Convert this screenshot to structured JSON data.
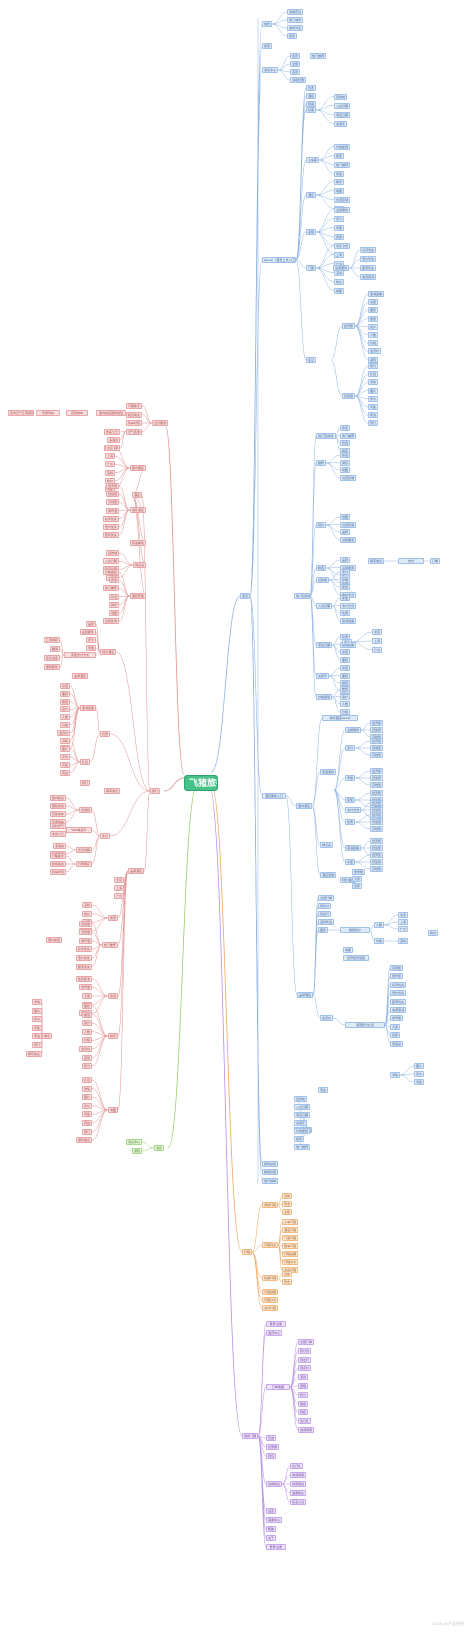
{
  "root": {
    "label": "飞猪旅行"
  },
  "colors": {
    "blue": "#8fb4e3",
    "red": "#e38f8f",
    "green": "#93cf6c",
    "orange": "#f0a75a",
    "purple": "#b690e6"
  },
  "watermark": "CSDN @产品经理",
  "branches": {
    "home": {
      "label": "首页"
    },
    "trip": {
      "label": "行程"
    },
    "msg": {
      "label": "消息"
    },
    "mine": {
      "label": "我的飞猪"
    },
    "travel": {
      "label": "旅行"
    }
  },
  "home": {
    "top_items": [
      "城市",
      "搜索",
      "消息中心",
      "banner（首页上方入口区）"
    ],
    "city_children": [
      "当前定位",
      "热门城市",
      "城市列表",
      "搜索"
    ],
    "msg_children": [
      "会员",
      "全部",
      "签到",
      "领取优惠"
    ],
    "banner_children": [
      "机票",
      "火车票",
      "酒店",
      "度假",
      "门票",
      "签证",
      "用车",
      "美食"
    ],
    "hot_items": [
      "热门目的地",
      "推荐",
      "特价",
      "精选"
    ],
    "bottom_items": [
      "猜你喜欢",
      "精选优惠",
      "旅行榜单"
    ]
  },
  "main": {
    "label": "酒店",
    "level2": [
      "国内酒店",
      "海外酒店",
      "民宿客栈",
      "钟点房",
      "酒店套餐",
      "特价酒店",
      "品牌酒店"
    ],
    "level3": [
      "目的地",
      "入住日期",
      "离店日期",
      "关键字",
      "价格星级",
      "搜索",
      "热门推荐",
      "筛选",
      "排序",
      "地图",
      "位置区域",
      "品牌",
      "设施服务",
      "评分",
      "早餐",
      "床型",
      "支付方式",
      "优惠",
      "取消政策",
      "房型",
      "面积",
      "楼层",
      "窗户",
      "人数",
      "价格",
      "会员价",
      "返现",
      "积分",
      "礼包",
      "详情",
      "图片",
      "评价",
      "问答",
      "周边",
      "预订",
      "填写信息",
      "支付",
      "订单"
    ],
    "level4": [
      "北京",
      "上海",
      "广州",
      "深圳",
      "杭州",
      "成都",
      "经济型",
      "舒适型",
      "高档型",
      "豪华型",
      "好评优先",
      "低价优先",
      "距离优先",
      "免费取消",
      "含早餐",
      "大床",
      "双床",
      "家庭房"
    ],
    "extra": [
      "全部订单",
      "待支付",
      "待出行",
      "退款售后"
    ]
  },
  "sidebar": {
    "label": "出行服务",
    "sub": [
      "行程助手",
      "航班动态",
      "列车时刻",
      "天气查询",
      "汇率换算",
      "翻译",
      "签证进度",
      "保险服务",
      "接送机",
      "WiFi电话卡",
      "景点讲解",
      "行李寄存"
    ],
    "deep": [
      "国内航班",
      "国际航班",
      "高铁动车",
      "普通列车",
      "实时天气",
      "未来七日",
      "多语言",
      "拍照翻译"
    ]
  },
  "trip": {
    "items": [
      "添加行程",
      "行程列表",
      "机票行程",
      "火车行程",
      "酒店行程",
      "门票行程",
      "租车行程",
      "行程提醒",
      "行程分享",
      "共享行程"
    ],
    "sub": [
      "当前",
      "历史",
      "全部"
    ]
  },
  "msg": {
    "items": [
      "消息中心",
      "通知",
      "互动消息",
      "官方通知",
      "客服",
      "交易物流"
    ],
    "sub": [
      "系统",
      "活动",
      "优惠"
    ]
  },
  "mine": {
    "items": [
      "登录/注册",
      "会员中心",
      "订单",
      "收藏",
      "足迹",
      "优惠券",
      "钱包",
      "常用信息",
      "设置",
      "客服中心",
      "帮助",
      "关于"
    ],
    "sub": [
      "全部订单",
      "待付款",
      "待出行",
      "待评价",
      "退款",
      "里程",
      "积分",
      "等级",
      "特权",
      "生日礼",
      "常用旅客",
      "常用地址",
      "发票抬头",
      "实名认证"
    ]
  },
  "travel": {
    "items": [
      "旅行攻略",
      "目的地"
    ]
  }
}
